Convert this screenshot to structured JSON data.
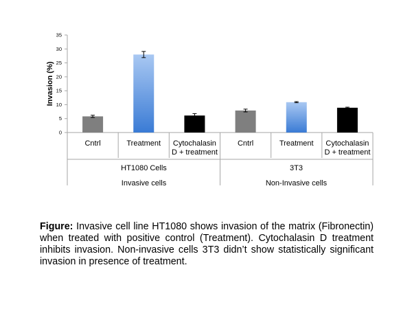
{
  "chart_data": {
    "type": "bar",
    "ylabel": "Invasion (%)",
    "ylim": [
      0,
      35
    ],
    "yticks": [
      0,
      5,
      10,
      15,
      20,
      25,
      30,
      35
    ],
    "grid": false,
    "legend": "none",
    "categories": [
      "Cntrl",
      "Treatment",
      "Cytochalasin D + treatment",
      "Cntrl",
      "Treatment",
      "Cytochalasin D + treatment"
    ],
    "category_lines": [
      [
        "Cntrl"
      ],
      [
        "Treatment"
      ],
      [
        "Cytochalasin",
        "D + treatment"
      ],
      [
        "Cntrl"
      ],
      [
        "Treatment"
      ],
      [
        "Cytochalasin",
        "D + treatment"
      ]
    ],
    "values": [
      5.8,
      28.0,
      6.1,
      7.9,
      10.9,
      8.9
    ],
    "errors": [
      0.4,
      1.1,
      0.7,
      0.5,
      0.2,
      0.2
    ],
    "bar_styles": [
      "gray",
      "blue",
      "black",
      "gray",
      "blue",
      "black"
    ],
    "colors": {
      "gray": "#7f7f7f",
      "blue_light": "#a9c8f2",
      "blue_dark": "#3a7bd5",
      "black": "#000000",
      "axis": "#a6a6a6"
    },
    "groups": [
      {
        "cell_line": "HT1080 Cells",
        "type": "Invasive cells"
      },
      {
        "cell_line": "3T3",
        "type": "Non-Invasive cells"
      }
    ]
  },
  "caption": {
    "label": "Figure:",
    "text": " Invasive cell line HT1080 shows invasion of the matrix (Fibronectin) when treated with positive control (Treatment). Cytochalasin D treatment inhibits invasion. Non-invasive cells 3T3 didn’t show statistically significant invasion in presence of treatment."
  }
}
